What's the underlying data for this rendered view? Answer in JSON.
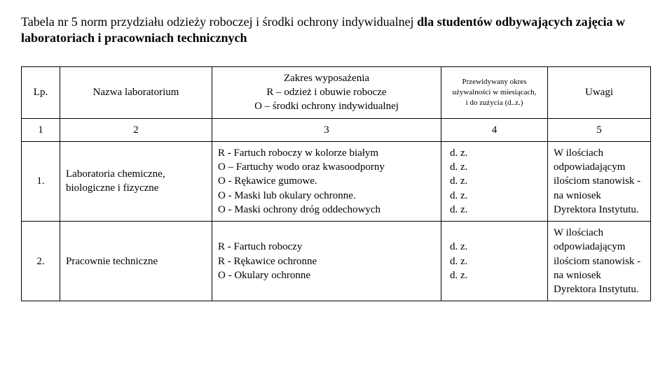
{
  "title_prefix": "Tabela nr 5 norm przydziału odzieży roboczej i środki ochrony indywidualnej ",
  "title_bold": "dla studentów odbywających zajęcia w laboratoriach i pracowniach technicznych",
  "header": {
    "lp": "Lp.",
    "name": "Nazwa laboratorium",
    "zakres": "Zakres wyposażenia\nR – odzież i obuwie robocze\nO – środki ochrony indywidualnej",
    "okres": "Przewidywany okres używalności w miesiącach,\ni do zużycia (d..z.)",
    "uwagi": "Uwagi"
  },
  "nums": {
    "c1": "1",
    "c2": "2",
    "c3": "3",
    "c4": "4",
    "c5": "5"
  },
  "rows": [
    {
      "lp": "1.",
      "name": "Laboratoria chemiczne, biologiczne i fizyczne",
      "zakres": "R -  Fartuch roboczy w kolorze białym\nO – Fartuchy wodo oraz kwasoodporny\nO -  Rękawice gumowe.\nO -  Maski lub okulary ochronne.\nO -  Maski ochrony dróg  oddechowych",
      "okres": "d. z.\nd. z.\nd. z.\nd. z.\nd. z.",
      "uwagi": "W ilościach odpowiadającym ilościom stanowisk - na wniosek Dyrektora Instytutu."
    },
    {
      "lp": "2.",
      "name": "Pracownie techniczne",
      "zakres": "R -  Fartuch roboczy\nR -  Rękawice ochronne\nO -  Okulary ochronne",
      "okres": "d. z.\nd. z.\nd. z.",
      "uwagi": "W ilościach odpowiadającym ilościom stanowisk - na wniosek Dyrektora Instytutu."
    }
  ]
}
